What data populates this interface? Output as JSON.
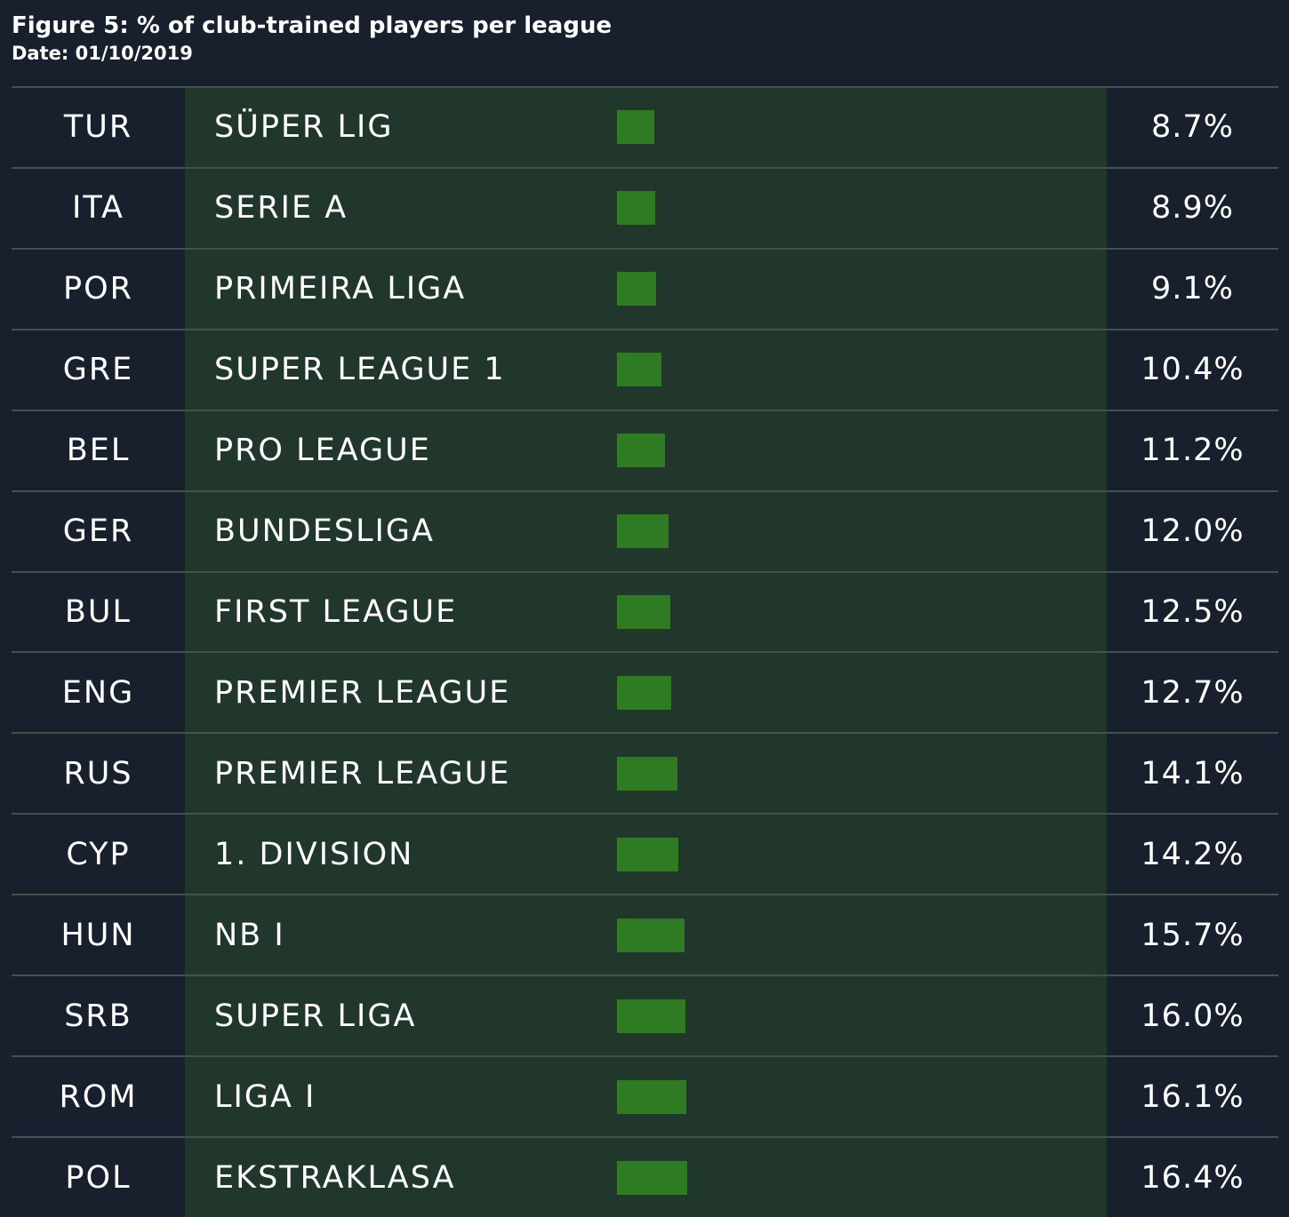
{
  "title": "Figure 5: % of club-trained players per league",
  "subtitle": "Date: 01/10/2019",
  "colors": {
    "background": "#17202c",
    "band": "#21372b",
    "bar": "#2f7b24",
    "rule": "#46514f"
  },
  "chart_data": {
    "type": "bar",
    "orientation": "horizontal",
    "title": "Figure 5: % of club-trained players per league",
    "subtitle": "Date: 01/10/2019",
    "xlim": [
      0,
      100
    ],
    "grid": false,
    "rows": [
      {
        "code": "TUR",
        "league": "SÜPER LIG",
        "value": 8.7,
        "label": "8.7%"
      },
      {
        "code": "ITA",
        "league": "SERIE A",
        "value": 8.9,
        "label": "8.9%"
      },
      {
        "code": "POR",
        "league": "PRIMEIRA LIGA",
        "value": 9.1,
        "label": "9.1%"
      },
      {
        "code": "GRE",
        "league": "SUPER LEAGUE 1",
        "value": 10.4,
        "label": "10.4%"
      },
      {
        "code": "BEL",
        "league": "PRO LEAGUE",
        "value": 11.2,
        "label": "11.2%"
      },
      {
        "code": "GER",
        "league": "BUNDESLIGA",
        "value": 12.0,
        "label": "12.0%"
      },
      {
        "code": "BUL",
        "league": "FIRST LEAGUE",
        "value": 12.5,
        "label": "12.5%"
      },
      {
        "code": "ENG",
        "league": "PREMIER LEAGUE",
        "value": 12.7,
        "label": "12.7%"
      },
      {
        "code": "RUS",
        "league": "PREMIER LEAGUE",
        "value": 14.1,
        "label": "14.1%"
      },
      {
        "code": "CYP",
        "league": "1. DIVISION",
        "value": 14.2,
        "label": "14.2%"
      },
      {
        "code": "HUN",
        "league": "NB I",
        "value": 15.7,
        "label": "15.7%"
      },
      {
        "code": "SRB",
        "league": "SUPER LIGA",
        "value": 16.0,
        "label": "16.0%"
      },
      {
        "code": "ROM",
        "league": "LIGA I",
        "value": 16.1,
        "label": "16.1%"
      },
      {
        "code": "POL",
        "league": "EKSTRAKLASA",
        "value": 16.4,
        "label": "16.4%"
      }
    ]
  }
}
